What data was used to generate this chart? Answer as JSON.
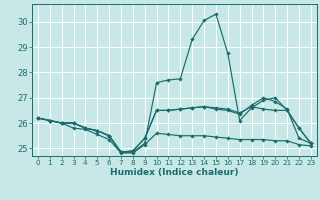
{
  "xlabel": "Humidex (Indice chaleur)",
  "bg_color": "#c8e8e8",
  "grid_color": "#ffffff",
  "line_color": "#1a6b6b",
  "xlim": [
    -0.5,
    23.5
  ],
  "ylim": [
    24.7,
    30.7
  ],
  "yticks": [
    25,
    26,
    27,
    28,
    29,
    30
  ],
  "xticks": [
    0,
    1,
    2,
    3,
    4,
    5,
    6,
    7,
    8,
    9,
    10,
    11,
    12,
    13,
    14,
    15,
    16,
    17,
    18,
    19,
    20,
    21,
    22,
    23
  ],
  "series": [
    {
      "x": [
        0,
        1,
        2,
        3,
        4,
        5,
        6,
        7,
        8,
        9,
        10,
        11,
        12,
        13,
        14,
        15,
        16,
        17,
        18,
        19,
        20,
        21,
        22,
        23
      ],
      "y": [
        26.2,
        26.1,
        26.0,
        26.0,
        25.8,
        25.7,
        25.5,
        24.85,
        24.85,
        25.2,
        27.6,
        27.7,
        27.75,
        29.3,
        30.05,
        30.3,
        28.75,
        26.1,
        26.6,
        26.9,
        27.0,
        26.5,
        25.8,
        25.2
      ]
    },
    {
      "x": [
        0,
        1,
        2,
        3,
        4,
        5,
        6,
        7,
        8,
        9,
        10,
        11,
        12,
        13,
        14,
        15,
        16,
        17,
        18,
        19,
        20,
        21,
        22,
        23
      ],
      "y": [
        26.2,
        26.1,
        26.0,
        26.0,
        25.8,
        25.7,
        25.5,
        24.85,
        24.9,
        25.4,
        26.5,
        26.5,
        26.55,
        26.6,
        26.65,
        26.55,
        26.5,
        26.35,
        26.7,
        27.0,
        26.85,
        26.55,
        25.4,
        25.2
      ]
    },
    {
      "x": [
        0,
        1,
        2,
        3,
        4,
        5,
        6,
        7,
        8,
        9,
        10,
        11,
        12,
        13,
        14,
        15,
        16,
        17,
        18,
        19,
        20,
        21,
        22,
        23
      ],
      "y": [
        26.2,
        26.1,
        26.0,
        26.0,
        25.8,
        25.7,
        25.5,
        24.85,
        24.9,
        25.4,
        26.5,
        26.5,
        26.55,
        26.6,
        26.65,
        26.6,
        26.55,
        26.4,
        26.65,
        26.55,
        26.5,
        26.5,
        25.8,
        25.2
      ]
    },
    {
      "x": [
        0,
        1,
        2,
        3,
        4,
        5,
        6,
        7,
        8,
        9,
        10,
        11,
        12,
        13,
        14,
        15,
        16,
        17,
        18,
        19,
        20,
        21,
        22,
        23
      ],
      "y": [
        26.2,
        26.1,
        26.0,
        25.8,
        25.75,
        25.55,
        25.35,
        24.82,
        24.82,
        25.15,
        25.6,
        25.55,
        25.5,
        25.5,
        25.5,
        25.45,
        25.4,
        25.35,
        25.35,
        25.35,
        25.3,
        25.3,
        25.15,
        25.1
      ]
    }
  ]
}
